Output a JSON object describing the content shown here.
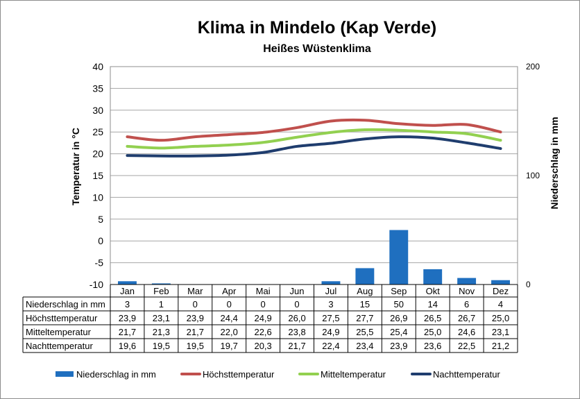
{
  "colors": {
    "precip": "#1f6fbf",
    "max": "#c0504d",
    "mean": "#92d050",
    "min": "#1f3d6e",
    "grid": "#a6a6a6"
  },
  "chart_data": {
    "type": "bar+line",
    "title": "Klima in Mindelo (Kap Verde)",
    "subtitle": "Heißes Wüstenklima",
    "ylabel_left": "Temperatur in °C",
    "ylabel_right": "Niederschlag in mm",
    "ylim_left": [
      -10,
      40
    ],
    "yticks_left": [
      40,
      35,
      30,
      25,
      20,
      15,
      10,
      5,
      0,
      -5,
      -10
    ],
    "ylim_right": [
      0,
      200
    ],
    "yticks_right": [
      200,
      100,
      0
    ],
    "grid": true,
    "legend_position": "bottom",
    "categories": [
      "Jan",
      "Feb",
      "Mar",
      "Apr",
      "Mai",
      "Jun",
      "Jul",
      "Aug",
      "Sep",
      "Okt",
      "Nov",
      "Dez"
    ],
    "series": [
      {
        "name": "Niederschlag in mm",
        "type": "bar",
        "axis": "right",
        "color_key": "precip",
        "values": [
          3,
          1,
          0,
          0,
          0,
          0,
          3,
          15,
          50,
          14,
          6,
          4
        ],
        "labels": [
          "3",
          "1",
          "0",
          "0",
          "0",
          "0",
          "3",
          "15",
          "50",
          "14",
          "6",
          "4"
        ]
      },
      {
        "name": "Höchsttemperatur",
        "type": "line",
        "axis": "left",
        "color_key": "max",
        "values": [
          23.9,
          23.1,
          23.9,
          24.4,
          24.9,
          26.0,
          27.5,
          27.7,
          26.9,
          26.5,
          26.7,
          25.0
        ],
        "labels": [
          "23,9",
          "23,1",
          "23,9",
          "24,4",
          "24,9",
          "26,0",
          "27,5",
          "27,7",
          "26,9",
          "26,5",
          "26,7",
          "25,0"
        ]
      },
      {
        "name": "Mitteltemperatur",
        "type": "line",
        "axis": "left",
        "color_key": "mean",
        "values": [
          21.7,
          21.3,
          21.7,
          22.0,
          22.6,
          23.8,
          24.9,
          25.5,
          25.4,
          25.0,
          24.6,
          23.1
        ],
        "labels": [
          "21,7",
          "21,3",
          "21,7",
          "22,0",
          "22,6",
          "23,8",
          "24,9",
          "25,5",
          "25,4",
          "25,0",
          "24,6",
          "23,1"
        ]
      },
      {
        "name": "Nachttemperatur",
        "type": "line",
        "axis": "left",
        "color_key": "min",
        "values": [
          19.6,
          19.5,
          19.5,
          19.7,
          20.3,
          21.7,
          22.4,
          23.4,
          23.9,
          23.6,
          22.5,
          21.2
        ],
        "labels": [
          "19,6",
          "19,5",
          "19,5",
          "19,7",
          "20,3",
          "21,7",
          "22,4",
          "23,4",
          "23,9",
          "23,6",
          "22,5",
          "21,2"
        ]
      }
    ]
  }
}
